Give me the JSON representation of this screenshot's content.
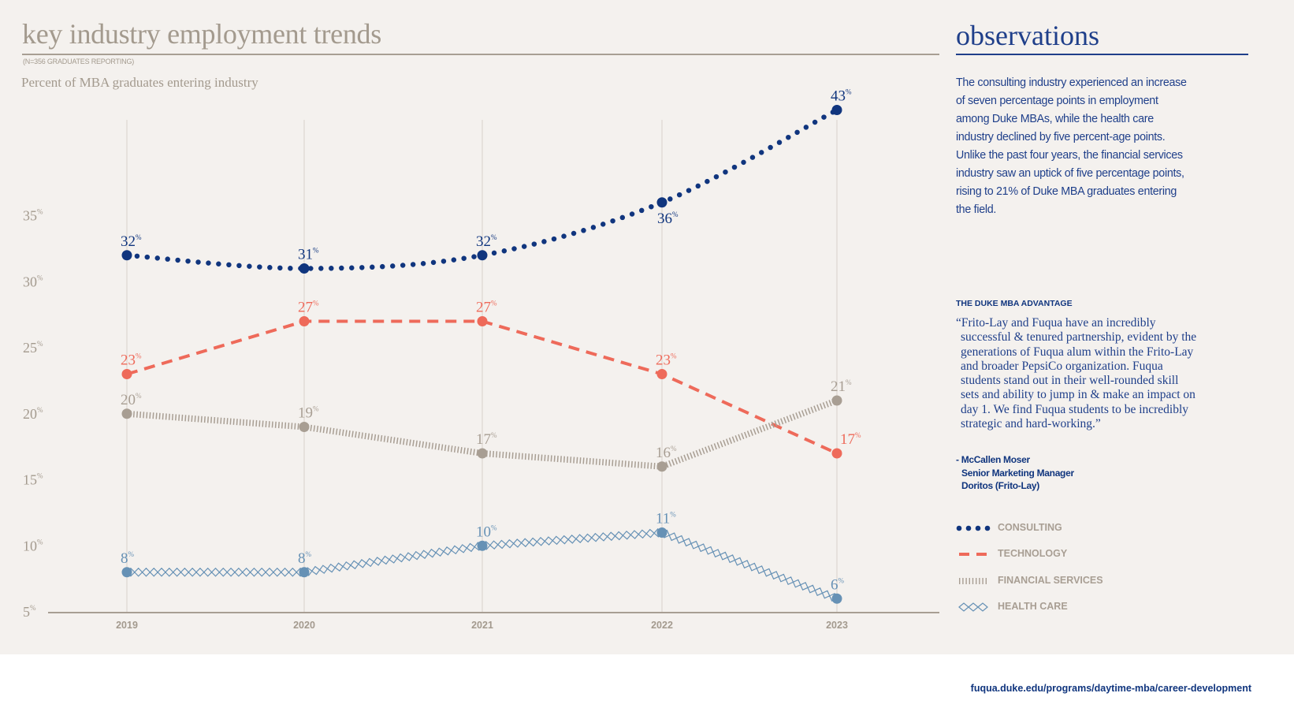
{
  "header": {
    "title": "key industry employment trends",
    "note": "(N=356 GRADUATES REPORTING)",
    "subtitle": "Percent of MBA graduates entering industry"
  },
  "observations": {
    "title": "observations",
    "text": "The consulting industry experienced an increase of seven percentage points in employment among Duke MBAs, while the health care industry declined by five percent-age points. Unlike the past four years, the financial services industry saw an uptick of five percentage points, rising to 21% of Duke MBA graduates entering the field.",
    "advantage_title": "THE DUKE MBA ADVANTAGE",
    "quote": "“Frito-Lay and Fuqua have an incredibly successful & tenured partnership, evident by the generations of Fuqua alum within the Frito-Lay and broader PepsiCo organization. Fuqua students stand out in their well-rounded skill sets and ability to jump in & make an impact on day 1. We find Fuqua students to be incredibly strategic and hard-working.”",
    "attribution": [
      "- McCallen Moser",
      "Senior Marketing Manager",
      "Doritos (Frito-Lay)"
    ]
  },
  "footer": {
    "url": "fuqua.duke.edu/programs/daytime-mba/career-development"
  },
  "chart_data": {
    "type": "line",
    "title": "key industry employment trends",
    "subtitle": "Percent of MBA graduates entering industry",
    "x": [
      "2019",
      "2020",
      "2021",
      "2022",
      "2023"
    ],
    "y_ticks": [
      "5",
      "10",
      "15",
      "20",
      "25",
      "30",
      "35"
    ],
    "y_unit": "%",
    "ylim": [
      5,
      43
    ],
    "grid": "vertical",
    "legend_position": "right",
    "series": [
      {
        "name": "CONSULTING",
        "values": [
          32,
          31,
          32,
          36,
          43
        ],
        "color": "#10357e",
        "style": "dotted"
      },
      {
        "name": "TECHNOLOGY",
        "values": [
          23,
          27,
          27,
          23,
          17
        ],
        "color": "#ee6a5a",
        "style": "dashed"
      },
      {
        "name": "FINANCIAL SERVICES",
        "values": [
          20,
          19,
          17,
          16,
          21
        ],
        "color": "#a89e93",
        "style": "hatched"
      },
      {
        "name": "HEALTH CARE",
        "values": [
          8,
          8,
          10,
          11,
          6
        ],
        "color": "#6691b5",
        "style": "diamonds"
      }
    ]
  }
}
